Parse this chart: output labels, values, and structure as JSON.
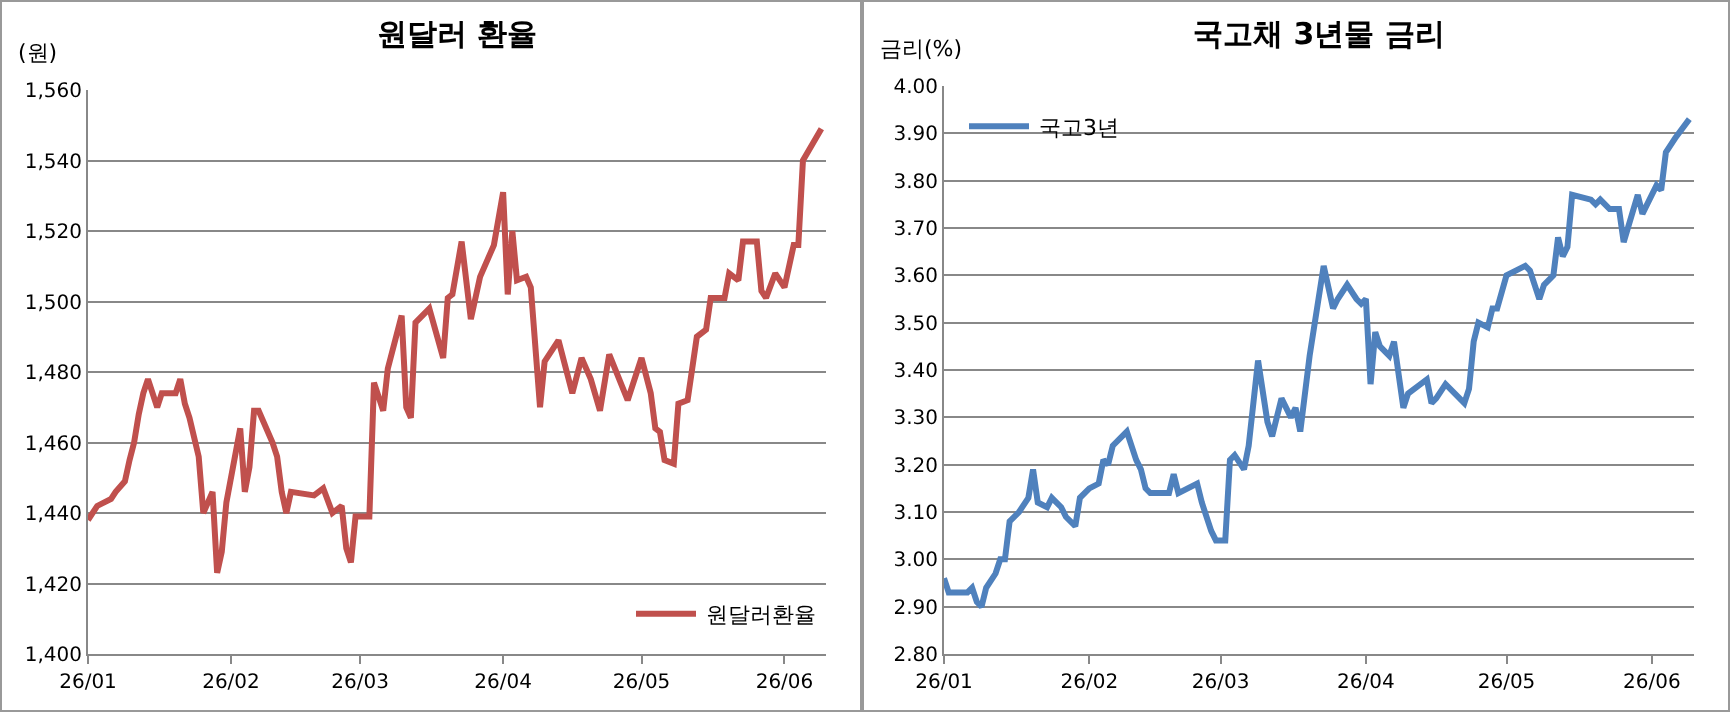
{
  "chart_data": [
    {
      "type": "line",
      "title": "원달러 환율",
      "ylabel": "(원)",
      "x": [
        "--01-01",
        "--01-03",
        "--01-06",
        "--01-07",
        "--01-09",
        "--01-10",
        "--01-11",
        "--01-12",
        "--01-13",
        "--01-14",
        "--01-16",
        "--01-17",
        "--01-20",
        "--01-21",
        "--01-22",
        "--01-23",
        "--01-25",
        "--01-26",
        "--01-28",
        "--01-29",
        "--01-30",
        "--01-31",
        "--02-03",
        "--02-04",
        "--02-05",
        "--02-06",
        "--02-07",
        "--02-10",
        "--02-11",
        "--02-12",
        "--02-13",
        "--02-14",
        "--02-19",
        "--02-21",
        "--02-23",
        "--02-25",
        "--02-26",
        "--02-27",
        "--02-28",
        "--03-03",
        "--03-04",
        "--03-06",
        "--03-07",
        "--03-10",
        "--03-11",
        "--03-12",
        "--03-13",
        "--03-16",
        "--03-19",
        "--03-20",
        "--03-21",
        "--03-23",
        "--03-25",
        "--03-27",
        "--03-30",
        "--04-01",
        "--04-02",
        "--04-03",
        "--04-04",
        "--04-06",
        "--04-07",
        "--04-09",
        "--04-10",
        "--04-13",
        "--04-16",
        "--04-18",
        "--04-20",
        "--04-22",
        "--04-24",
        "--04-28",
        "--05-01",
        "--05-03",
        "--05-04",
        "--05-05",
        "--05-06",
        "--05-08",
        "--05-09",
        "--05-11",
        "--05-13",
        "--05-15",
        "--05-16",
        "--05-19",
        "--05-20",
        "--05-22",
        "--05-23",
        "--05-26",
        "--05-27",
        "--05-28",
        "--05-30",
        "--06-01",
        "--06-03",
        "--06-04",
        "--06-05",
        "--06-09"
      ],
      "series": [
        {
          "name": "원달러환율",
          "color": "#c0504d",
          "values": [
            1438,
            1442,
            1444,
            1446,
            1449,
            1455,
            1460,
            1468,
            1474,
            1478,
            1470,
            1474,
            1474,
            1478,
            1471,
            1467,
            1456,
            1440,
            1446,
            1423,
            1429,
            1443,
            1464,
            1446,
            1453,
            1469,
            1469,
            1460,
            1456,
            1446,
            1440,
            1446,
            1445,
            1447,
            1440,
            1442,
            1430,
            1426,
            1439,
            1439,
            1477,
            1469,
            1481,
            1496,
            1470,
            1467,
            1494,
            1498,
            1484,
            1501,
            1502,
            1517,
            1495,
            1507,
            1516,
            1531,
            1502,
            1520,
            1506,
            1507,
            1504,
            1470,
            1483,
            1489,
            1474,
            1484,
            1478,
            1469,
            1485,
            1472,
            1484,
            1474,
            1464,
            1463,
            1455,
            1454,
            1471,
            1472,
            1490,
            1492,
            1501,
            1501,
            1508,
            1506,
            1517,
            1517,
            1503,
            1501,
            1508,
            1504,
            1516,
            1516,
            1540,
            1549
          ]
        }
      ],
      "xlim": [
        "--01-01",
        "--06-10"
      ],
      "xticks": [
        {
          "value": "--01-01",
          "label": "26/01"
        },
        {
          "value": "--02-01",
          "label": "26/02"
        },
        {
          "value": "--03-01",
          "label": "26/03"
        },
        {
          "value": "--04-01",
          "label": "26/04"
        },
        {
          "value": "--05-01",
          "label": "26/05"
        },
        {
          "value": "--06-01",
          "label": "26/06"
        }
      ],
      "ylim": [
        1400,
        1560
      ],
      "yticks": [
        {
          "value": 1400,
          "label": "1,400"
        },
        {
          "value": 1420,
          "label": "1,420"
        },
        {
          "value": 1440,
          "label": "1,440"
        },
        {
          "value": 1460,
          "label": "1,460"
        },
        {
          "value": 1480,
          "label": "1,480"
        },
        {
          "value": 1500,
          "label": "1,500"
        },
        {
          "value": 1520,
          "label": "1,520"
        },
        {
          "value": 1540,
          "label": "1,540"
        },
        {
          "value": 1560,
          "label": "1,560"
        }
      ],
      "grid": "y",
      "legend": "bottom right"
    },
    {
      "type": "line",
      "title": "국고채 3년물 금리",
      "ylabel": "금리(%)",
      "x": [
        "--01-01",
        "--01-02",
        "--01-06",
        "--01-07",
        "--01-08",
        "--01-09",
        "--01-10",
        "--01-12",
        "--01-13",
        "--01-14",
        "--01-15",
        "--01-17",
        "--01-19",
        "--01-20",
        "--01-21",
        "--01-23",
        "--01-24",
        "--01-26",
        "--01-27",
        "--01-29",
        "--01-30",
        "--02-01",
        "--02-03",
        "--02-04",
        "--02-05",
        "--02-06",
        "--02-09",
        "--02-11",
        "--02-12",
        "--02-13",
        "--02-14",
        "--02-18",
        "--02-19",
        "--02-20",
        "--02-24",
        "--02-25",
        "--02-27",
        "--02-28",
        "--03-02",
        "--03-03",
        "--03-04",
        "--03-06",
        "--03-07",
        "--03-09",
        "--03-11",
        "--03-12",
        "--03-14",
        "--03-16",
        "--03-17",
        "--03-18",
        "--03-20",
        "--03-23",
        "--03-25",
        "--03-26",
        "--03-28",
        "--03-30",
        "--03-31",
        "--04-01",
        "--04-02",
        "--04-03",
        "--04-04",
        "--04-06",
        "--04-07",
        "--04-09",
        "--04-10",
        "--04-14",
        "--04-15",
        "--04-16",
        "--04-18",
        "--04-22",
        "--04-23",
        "--04-24",
        "--04-25",
        "--04-27",
        "--04-28",
        "--04-29",
        "--05-01",
        "--05-05",
        "--05-06",
        "--05-08",
        "--05-09",
        "--05-11",
        "--05-12",
        "--05-13",
        "--05-14",
        "--05-15",
        "--05-19",
        "--05-20",
        "--05-21",
        "--05-23",
        "--05-25",
        "--05-26",
        "--05-29",
        "--05-30",
        "--06-02",
        "--06-03",
        "--06-04",
        "--06-06",
        "--06-09"
      ],
      "series": [
        {
          "name": "국고3년",
          "color": "#4f81bd",
          "values": [
            2.96,
            2.93,
            2.93,
            2.94,
            2.91,
            2.9,
            2.94,
            2.97,
            3.0,
            3.0,
            3.08,
            3.1,
            3.13,
            3.19,
            3.12,
            3.11,
            3.13,
            3.11,
            3.09,
            3.07,
            3.13,
            3.15,
            3.16,
            3.21,
            3.2,
            3.24,
            3.27,
            3.21,
            3.19,
            3.15,
            3.14,
            3.14,
            3.18,
            3.14,
            3.16,
            3.12,
            3.06,
            3.04,
            3.04,
            3.21,
            3.22,
            3.19,
            3.24,
            3.42,
            3.29,
            3.26,
            3.34,
            3.3,
            3.32,
            3.27,
            3.43,
            3.62,
            3.53,
            3.55,
            3.58,
            3.55,
            3.54,
            3.55,
            3.37,
            3.48,
            3.45,
            3.43,
            3.46,
            3.32,
            3.35,
            3.38,
            3.33,
            3.34,
            3.37,
            3.33,
            3.36,
            3.46,
            3.5,
            3.49,
            3.53,
            3.53,
            3.6,
            3.62,
            3.61,
            3.55,
            3.58,
            3.6,
            3.68,
            3.64,
            3.66,
            3.77,
            3.76,
            3.75,
            3.76,
            3.74,
            3.74,
            3.67,
            3.77,
            3.73,
            3.79,
            3.78,
            3.86,
            3.89,
            3.93
          ]
        }
      ],
      "xlim": [
        "--01-01",
        "--06-10"
      ],
      "xticks": [
        {
          "value": "--01-01",
          "label": "26/01"
        },
        {
          "value": "--02-01",
          "label": "26/02"
        },
        {
          "value": "--03-01",
          "label": "26/03"
        },
        {
          "value": "--04-01",
          "label": "26/04"
        },
        {
          "value": "--05-01",
          "label": "26/05"
        },
        {
          "value": "--06-01",
          "label": "26/06"
        }
      ],
      "ylim": [
        2.8,
        4.0
      ],
      "yticks": [
        {
          "value": 2.8,
          "label": "2.80"
        },
        {
          "value": 2.9,
          "label": "2.90"
        },
        {
          "value": 3.0,
          "label": "3.00"
        },
        {
          "value": 3.1,
          "label": "3.10"
        },
        {
          "value": 3.2,
          "label": "3.20"
        },
        {
          "value": 3.3,
          "label": "3.30"
        },
        {
          "value": 3.4,
          "label": "3.40"
        },
        {
          "value": 3.5,
          "label": "3.50"
        },
        {
          "value": 3.6,
          "label": "3.60"
        },
        {
          "value": 3.7,
          "label": "3.70"
        },
        {
          "value": 3.8,
          "label": "3.80"
        },
        {
          "value": 3.9,
          "label": "3.90"
        },
        {
          "value": 4.0,
          "label": "4.00"
        }
      ],
      "grid": "y",
      "legend": "top left"
    }
  ]
}
